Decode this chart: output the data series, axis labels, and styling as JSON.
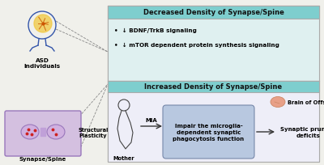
{
  "bg_color": "#f0f0eb",
  "left_panel": {
    "asd_label": "ASD\nIndividuals",
    "synapse_label": "Synapse/Spine",
    "structural_label": "Structural\nPlasticity"
  },
  "top_box": {
    "header": "Decreased Density of Synapse/Spine",
    "header_bg": "#7ecece",
    "box_bg": "#dff0f0",
    "bullet1": "↓ BDNF/TrkB signaling",
    "bullet2": "↓ mTOR dependent protein synthesis signaling"
  },
  "bottom_box": {
    "header": "Increased Density of Synapse/Spine",
    "header_bg": "#7ecece",
    "box_bg": "#eeeef8",
    "mother_label": "Mother",
    "mia_label": "MIA",
    "brain_label": "Brain of Offspring",
    "inner_box_text": "Impair the microglia-\ndependent synaptic\nphagocytosis function",
    "inner_box_bg": "#b8c8e0",
    "end_text": "Synaptic pruning\ndeficits"
  }
}
